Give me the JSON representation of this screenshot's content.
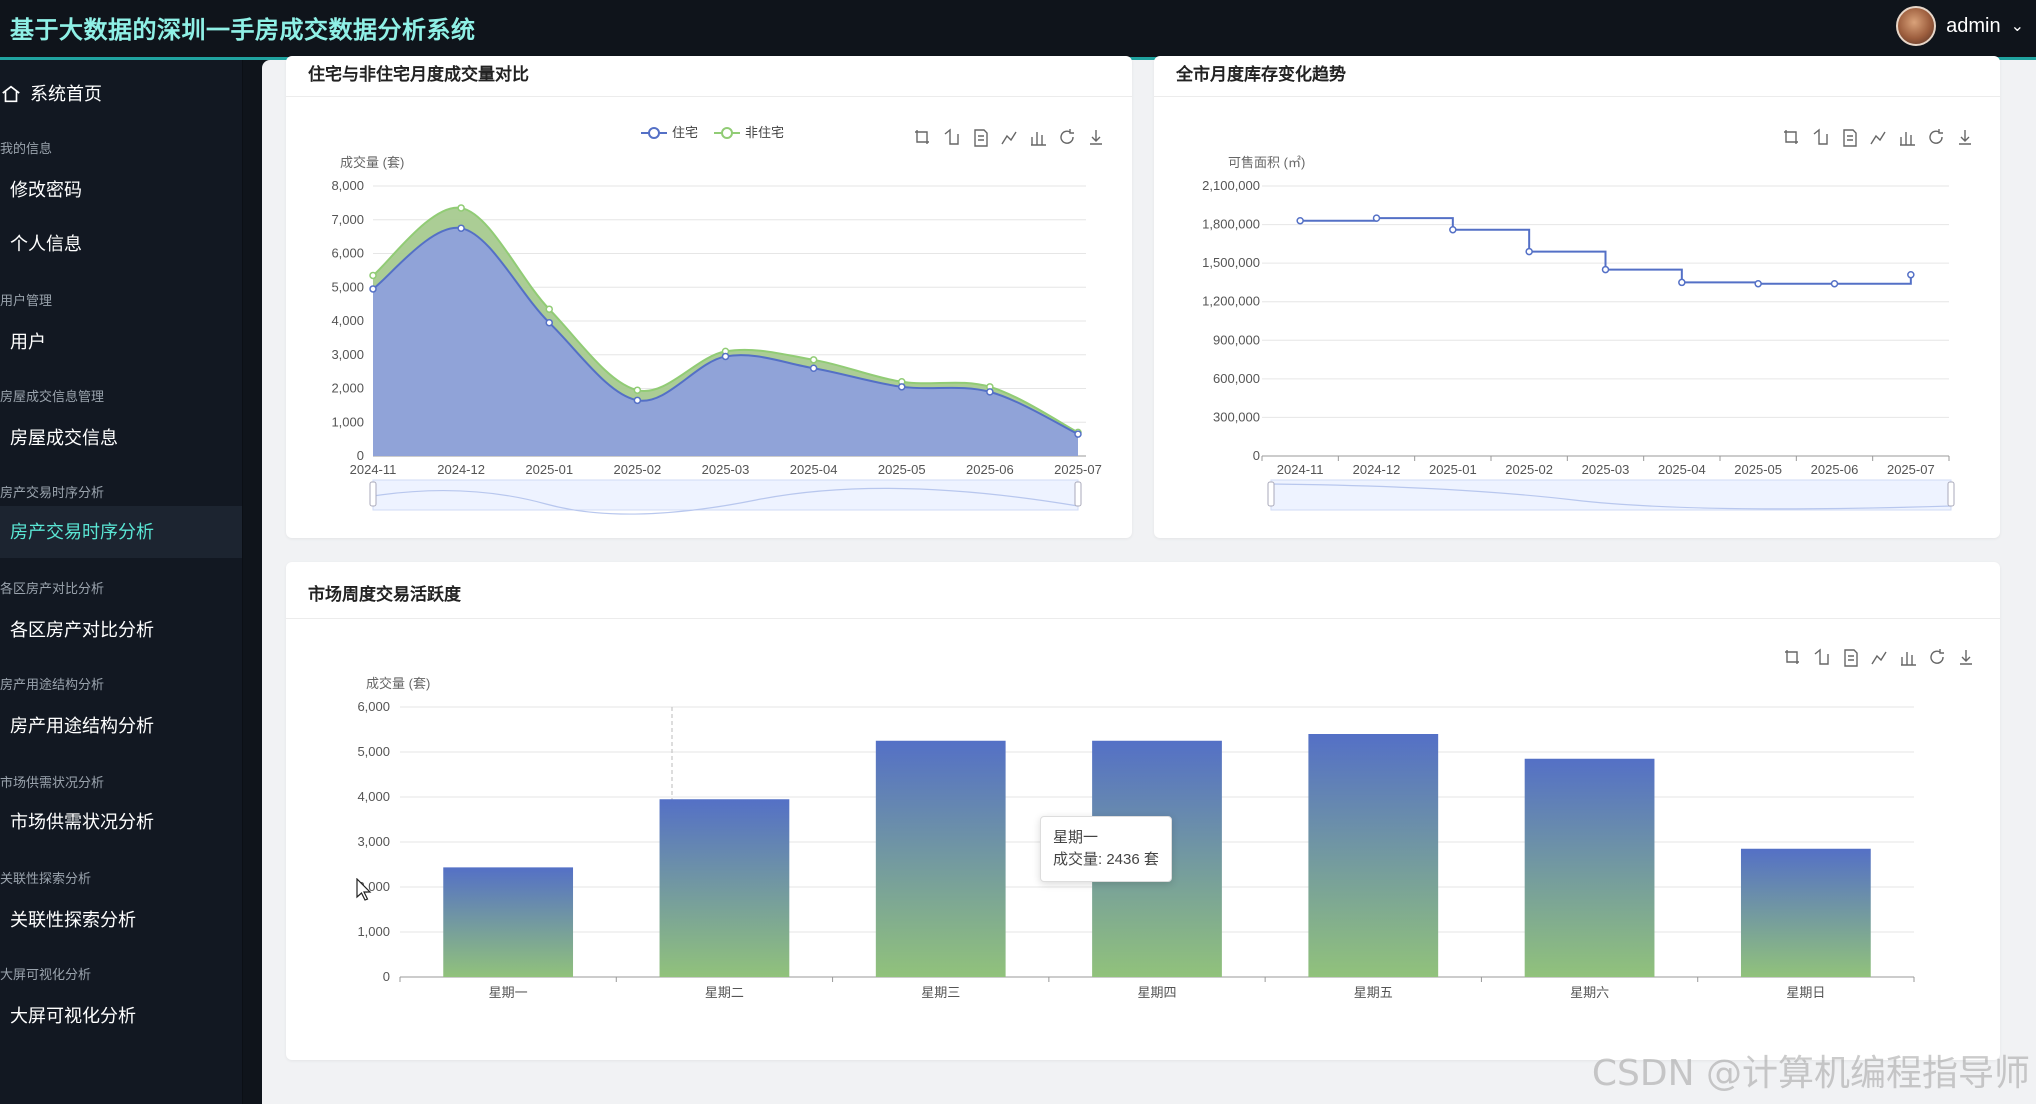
{
  "header": {
    "title": "基于大数据的深圳一手房成交数据分析系统",
    "user": "admin"
  },
  "sidebar": {
    "home": "系统首页",
    "groups": [
      {
        "label": "我的信息",
        "items": [
          "修改密码",
          "个人信息"
        ]
      },
      {
        "label": "用户管理",
        "items": [
          "用户"
        ]
      },
      {
        "label": "房屋成交信息管理",
        "items": [
          "房屋成交信息"
        ]
      },
      {
        "label": "房产交易时序分析",
        "items": [
          "房产交易时序分析"
        ]
      },
      {
        "label": "各区房产对比分析",
        "items": [
          "各区房产对比分析"
        ]
      },
      {
        "label": "房产用途结构分析",
        "items": [
          "房产用途结构分析"
        ]
      },
      {
        "label": "市场供需状况分析",
        "items": [
          "市场供需状况分析"
        ]
      },
      {
        "label": "关联性探索分析",
        "items": [
          "关联性探索分析"
        ]
      },
      {
        "label": "大屏可视化分析",
        "items": [
          "大屏可视化分析"
        ]
      }
    ],
    "active": "房产交易时序分析"
  },
  "cards": {
    "c1_title": "住宅与非住宅月度成交量对比",
    "c2_title": "全市月度库存变化趋势",
    "c3_title": "市场周度交易活跃度"
  },
  "tooltip": {
    "line1": "星期一",
    "line2": "成交量: 2436 套"
  },
  "watermark": "CSDN @计算机编程指导师",
  "chart_data": [
    {
      "type": "area",
      "ylabel": "成交量 (套)",
      "ylim": [
        0,
        8000
      ],
      "yticks": [
        0,
        1000,
        2000,
        3000,
        4000,
        5000,
        6000,
        7000,
        8000
      ],
      "yticklabels": [
        "0",
        "1,000",
        "2,000",
        "3,000",
        "4,000",
        "5,000",
        "6,000",
        "7,000",
        "8,000"
      ],
      "categories": [
        "2024-11",
        "2024-12",
        "2025-01",
        "2025-02",
        "2025-03",
        "2025-04",
        "2025-05",
        "2025-06",
        "2025-07"
      ],
      "series": [
        {
          "name": "住宅",
          "values": [
            4950,
            6750,
            3950,
            1650,
            2950,
            2600,
            2050,
            1900,
            650
          ],
          "color": "#5470c6"
        },
        {
          "name": "非住宅",
          "values": [
            5350,
            7350,
            4350,
            1950,
            3100,
            2850,
            2200,
            2050,
            700
          ],
          "color": "#91cc75"
        }
      ],
      "stacked": false,
      "legend": "top-center",
      "grid": true
    },
    {
      "type": "line",
      "ylabel": "可售面积 (㎡)",
      "ylim": [
        0,
        2100000
      ],
      "yticks": [
        0,
        300000,
        600000,
        900000,
        1200000,
        1500000,
        1800000,
        2100000
      ],
      "yticklabels": [
        "0",
        "300,000",
        "600,000",
        "900,000",
        "1,200,000",
        "1,500,000",
        "1,800,000",
        "2,100,000"
      ],
      "categories": [
        "2024-11",
        "2024-12",
        "2025-01",
        "2025-02",
        "2025-03",
        "2025-04",
        "2025-05",
        "2025-06",
        "2025-07"
      ],
      "series": [
        {
          "values": [
            1830000,
            1850000,
            1760000,
            1590000,
            1450000,
            1350000,
            1340000,
            1340000,
            1410000
          ],
          "color": "#5470c6"
        }
      ],
      "step": "end",
      "grid": true
    },
    {
      "type": "bar",
      "ylabel": "成交量 (套)",
      "ylim": [
        0,
        6000
      ],
      "yticks": [
        0,
        1000,
        2000,
        3000,
        4000,
        5000,
        6000
      ],
      "yticklabels": [
        "0",
        "1,000",
        "2,000",
        "3,000",
        "4,000",
        "5,000",
        "6,000"
      ],
      "categories": [
        "星期一",
        "星期二",
        "星期三",
        "星期四",
        "星期五",
        "星期六",
        "星期日"
      ],
      "values": [
        2436,
        3950,
        5250,
        5250,
        5400,
        4850,
        2850
      ],
      "color_top": "#5470c6",
      "color_bottom": "#91c27b",
      "grid": true
    }
  ]
}
